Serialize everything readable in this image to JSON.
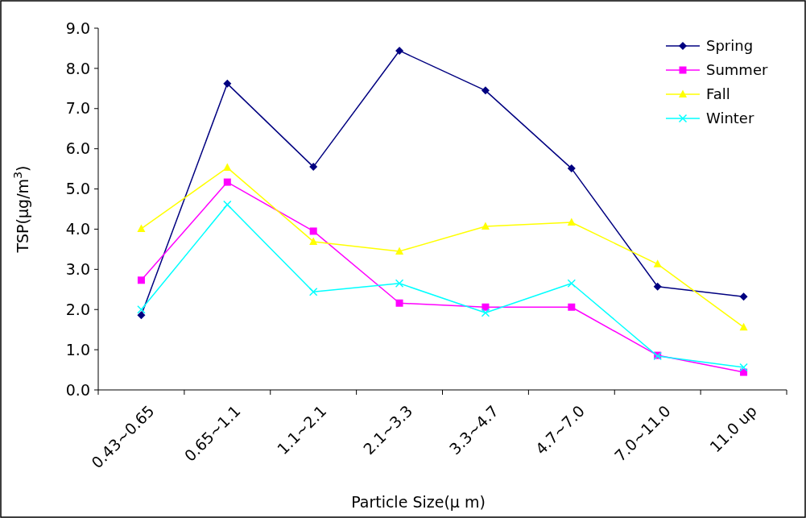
{
  "chart_data": {
    "type": "line",
    "xlabel": "Particle Size(μ m)",
    "ylabel": "TSP(μg/m$^{3}$)",
    "categories": [
      "0.43~0.65",
      "0.65~1.1",
      "1.1~2.1",
      "2.1~3.3",
      "3.3~4.7",
      "4.7~7.0",
      "7.0~11.0",
      "11.0 up"
    ],
    "ylim": [
      0,
      9
    ],
    "yticks": [
      {
        "value": 0,
        "label": "0.0"
      },
      {
        "value": 1,
        "label": "1.0"
      },
      {
        "value": 2,
        "label": "2.0"
      },
      {
        "value": 3,
        "label": "3.0"
      },
      {
        "value": 4,
        "label": "4.0"
      },
      {
        "value": 5,
        "label": "5.0"
      },
      {
        "value": 6,
        "label": "6.0"
      },
      {
        "value": 7,
        "label": "7.0"
      },
      {
        "value": 8,
        "label": "8.0"
      },
      {
        "value": 9,
        "label": "9.0"
      }
    ],
    "legend": "top right",
    "grid": false,
    "series": [
      {
        "name": "Spring",
        "color": "#000080",
        "marker": "diamond",
        "values": [
          1.86,
          7.62,
          5.55,
          8.44,
          7.45,
          5.51,
          2.57,
          2.32
        ]
      },
      {
        "name": "Summer",
        "color": "#ff00ff",
        "marker": "square",
        "values": [
          2.73,
          5.17,
          3.95,
          2.16,
          2.06,
          2.06,
          0.86,
          0.44
        ]
      },
      {
        "name": "Fall",
        "color": "#ffff00",
        "marker": "triangle",
        "values": [
          4.01,
          5.53,
          3.69,
          3.45,
          4.07,
          4.17,
          3.13,
          1.56
        ]
      },
      {
        "name": "Winter",
        "color": "#00ffff",
        "marker": "cross",
        "values": [
          2.0,
          4.61,
          2.44,
          2.65,
          1.92,
          2.65,
          0.84,
          0.56
        ]
      }
    ]
  }
}
